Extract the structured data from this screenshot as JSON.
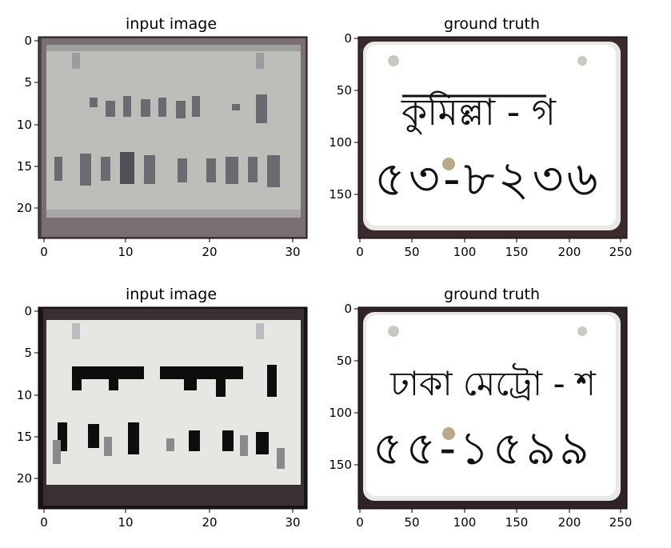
{
  "panels": [
    {
      "title": "input image",
      "xticks": [
        "0",
        "10",
        "20",
        "30"
      ],
      "yticks": [
        "0",
        "5",
        "10",
        "15",
        "20"
      ],
      "plate_text": [
        "কুমিল্লা - গ",
        "৫৩-৮২৩৬"
      ]
    },
    {
      "title": "ground truth",
      "xticks": [
        "0",
        "50",
        "100",
        "150",
        "200",
        "250"
      ],
      "yticks": [
        "0",
        "50",
        "100",
        "150"
      ],
      "plate_text": [
        "কুমিল্লা - গ",
        "৫৩-৮২৩৬"
      ]
    },
    {
      "title": "input image",
      "xticks": [
        "0",
        "10",
        "20",
        "30"
      ],
      "yticks": [
        "0",
        "5",
        "10",
        "15",
        "20"
      ],
      "plate_text": [
        "ঢাকা মেট্রো - শ",
        "৫৫-১৫৯৯"
      ]
    },
    {
      "title": "ground truth",
      "xticks": [
        "0",
        "50",
        "100",
        "150",
        "200",
        "250"
      ],
      "yticks": [
        "0",
        "50",
        "100",
        "150"
      ],
      "plate_text": [
        "ঢাকা মেট্রো - শ",
        "৫৫-১৫৯৯"
      ]
    }
  ],
  "colors": {
    "plate_low": "#cfd0cc",
    "plate_high": "#f6f6f4",
    "frame": "#5b4a4d",
    "dark_frame": "#1a1416",
    "ink": "#111111"
  }
}
